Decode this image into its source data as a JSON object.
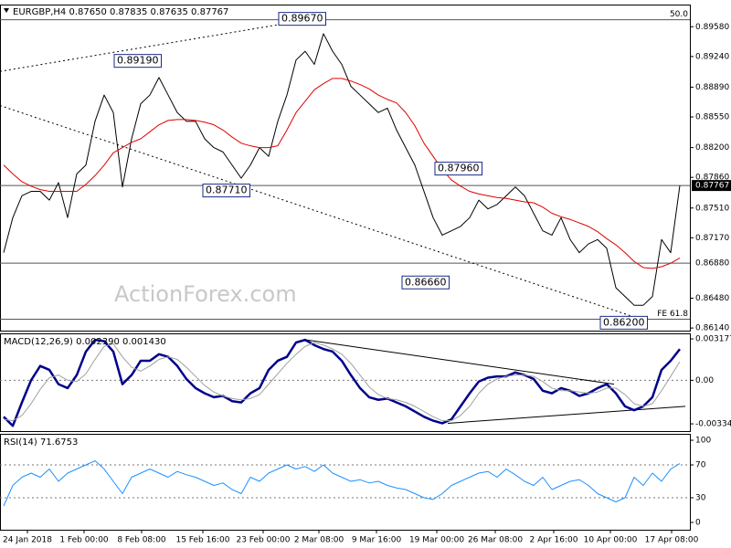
{
  "chart_data": [
    {
      "type": "line",
      "title": "EURGBP,H4  0.87650 0.87835 0.87635 0.87767",
      "watermark": "ActionForex.com",
      "xlim": [
        -0.4,
        75.1
      ],
      "ylim": [
        0.8611,
        0.8976
      ],
      "yticks": [
        {
          "value": 0.8958,
          "label": "0.89580"
        },
        {
          "value": 0.8924,
          "label": "0.89240"
        },
        {
          "value": 0.8889,
          "label": "0.88890"
        },
        {
          "value": 0.8855,
          "label": "0.88550"
        },
        {
          "value": 0.882,
          "label": "0.88200"
        },
        {
          "value": 0.8786,
          "label": "0.87860"
        },
        {
          "value": 0.8751,
          "label": "0.87510"
        },
        {
          "value": 0.8717,
          "label": "0.87170"
        },
        {
          "value": 0.8648,
          "label": "0.86480"
        },
        {
          "value": 0.8614,
          "label": "0.86140"
        }
      ],
      "series": [
        {
          "color": "#000000",
          "line_width": 1,
          "values": [
            0.87,
            0.874,
            0.8765,
            0.877,
            0.877,
            0.876,
            0.878,
            0.874,
            0.879,
            0.88,
            0.885,
            0.888,
            0.886,
            0.8775,
            0.883,
            0.887,
            0.888,
            0.89,
            0.888,
            0.886,
            0.885,
            0.885,
            0.883,
            0.882,
            0.8815,
            0.88,
            0.8785,
            0.88,
            0.882,
            0.881,
            0.885,
            0.888,
            0.892,
            0.893,
            0.8915,
            0.895,
            0.893,
            0.8915,
            0.889,
            0.888,
            0.887,
            0.886,
            0.8865,
            0.884,
            0.882,
            0.88,
            0.877,
            0.874,
            0.872,
            0.8725,
            0.873,
            0.874,
            0.876,
            0.875,
            0.8755,
            0.8765,
            0.8775,
            0.8765,
            0.8745,
            0.8725,
            0.872,
            0.874,
            0.8715,
            0.87,
            0.871,
            0.8715,
            0.8705,
            0.866,
            0.865,
            0.864,
            0.864,
            0.865,
            0.8715,
            0.87,
            0.87767
          ]
        },
        {
          "color": "#e00000",
          "line_width": 1,
          "values": [
            0.88,
            0.879,
            0.8781,
            0.8776,
            0.8772,
            0.877,
            0.877,
            0.877,
            0.877,
            0.8778,
            0.8788,
            0.88,
            0.8814,
            0.882,
            0.8826,
            0.883,
            0.8838,
            0.8846,
            0.8851,
            0.8852,
            0.8852,
            0.8851,
            0.8849,
            0.8846,
            0.884,
            0.8832,
            0.8825,
            0.8822,
            0.882,
            0.882,
            0.8822,
            0.884,
            0.886,
            0.8873,
            0.8886,
            0.8893,
            0.8899,
            0.8899,
            0.8896,
            0.8892,
            0.8887,
            0.888,
            0.8875,
            0.8871,
            0.886,
            0.8845,
            0.8825,
            0.881,
            0.8795,
            0.8783,
            0.8776,
            0.877,
            0.8767,
            0.8765,
            0.8763,
            0.8762,
            0.876,
            0.8758,
            0.8757,
            0.8752,
            0.8745,
            0.8741,
            0.8738,
            0.8734,
            0.873,
            0.8724,
            0.8716,
            0.8709,
            0.87,
            0.869,
            0.8683,
            0.8682,
            0.8684,
            0.8688,
            0.8694
          ]
        }
      ],
      "levels": [
        {
          "value": 0.8966,
          "label": "50.0"
        },
        {
          "value": 0.8624,
          "label": "FE 61.8"
        },
        {
          "value": 0.8688
        },
        {
          "value": 0.87767
        }
      ],
      "trendlines": [
        {
          "x": [
            -0.4,
            35.6
          ],
          "values": [
            0.8907,
            0.897
          ]
        },
        {
          "x": [
            -0.4,
            68.6
          ],
          "values": [
            0.8868,
            0.8628
          ]
        }
      ],
      "annotations": [
        {
          "text": "0.89670",
          "x": 30.1,
          "value": 0.8967
        },
        {
          "text": "0.89190",
          "x": 12.1,
          "value": 0.8919
        },
        {
          "text": "0.87710",
          "x": 21.8,
          "value": 0.8771
        },
        {
          "text": "0.87960",
          "x": 47.2,
          "value": 0.8796
        },
        {
          "text": "0.86660",
          "x": 43.6,
          "value": 0.8666
        },
        {
          "text": "0.86200",
          "x": 65.3,
          "value": 0.862
        }
      ],
      "price_tags": [
        {
          "value": 0.87767,
          "dark": true
        },
        {
          "value": 0.8688,
          "label": "0.86880",
          "dark": false
        }
      ]
    },
    {
      "type": "line",
      "title": "MACD(12,26,9) 0.002390 0.001430",
      "xlim": [
        -0.4,
        75.1
      ],
      "ylim": [
        -0.0039,
        0.00353
      ],
      "yticks": [
        0.003177,
        {
          "value": 0,
          "label": "0.00"
        },
        -0.003344
      ],
      "levels": [
        {
          "value": 0
        }
      ],
      "series": [
        {
          "color": "#00008b",
          "line_width": 2.5,
          "values": [
            -0.0028,
            -0.0035,
            -0.0017,
            0,
            0.0011,
            0.0008,
            -0.0003,
            -0.0006,
            0.0004,
            0.0022,
            0.0031,
            0.003,
            0.0022,
            -0.0003,
            0.0004,
            0.0015,
            0.0015,
            0.002,
            0.0018,
            0.0011,
            0.0001,
            -0.0006,
            -0.001,
            -0.0013,
            -0.0012,
            -0.0016,
            -0.0017,
            -0.001,
            -0.0006,
            0.0008,
            0.0015,
            0.0018,
            0.0029,
            0.0031,
            0.0027,
            0.0024,
            0.0022,
            0.0015,
            0.0004,
            -0.0006,
            -0.0013,
            -0.0015,
            -0.0014,
            -0.0017,
            -0.002,
            -0.0024,
            -0.0028,
            -0.0031,
            -0.0033,
            -0.003,
            -0.002,
            -0.001,
            -0.0001,
            0.0002,
            0.0003,
            0.0003,
            0.0006,
            0.0004,
            0.0001,
            -0.0008,
            -0.001,
            -0.0006,
            -0.0008,
            -0.0012,
            -0.001,
            -0.0006,
            -0.0003,
            -0.001,
            -0.002,
            -0.0023,
            -0.002,
            -0.0013,
            0.0008,
            0.0015,
            0.00239
          ]
        },
        {
          "color": "#a0a0a0",
          "line_width": 1,
          "values": [
            -0.003,
            -0.0031,
            -0.0027,
            -0.0018,
            -0.0007,
            0.0002,
            0.0004,
            0,
            -0.0001,
            0.0005,
            0.0016,
            0.0026,
            0.0028,
            0.0018,
            0.001,
            0.0007,
            0.0011,
            0.0016,
            0.0018,
            0.0016,
            0.001,
            0.0003,
            -0.0004,
            -0.0009,
            -0.0012,
            -0.0014,
            -0.0015,
            -0.0014,
            -0.0011,
            -0.0003,
            0.0005,
            0.0013,
            0.002,
            0.0026,
            0.0029,
            0.0027,
            0.0024,
            0.002,
            0.0013,
            0.0004,
            -0.0005,
            -0.0011,
            -0.0014,
            -0.0015,
            -0.0017,
            -0.002,
            -0.0024,
            -0.0028,
            -0.0031,
            -0.0031,
            -0.0027,
            -0.002,
            -0.001,
            -0.0003,
            0.0001,
            0.0003,
            0.0004,
            0.0004,
            0.0003,
            -0.0001,
            -0.0006,
            -0.0008,
            -0.0008,
            -0.0009,
            -0.001,
            -0.0009,
            -0.0006,
            -0.0006,
            -0.0011,
            -0.0018,
            -0.002,
            -0.0018,
            -0.0008,
            0.0003,
            0.00143
          ]
        }
      ],
      "trendlines": [
        {
          "x": [
            33.1,
            66.8
          ],
          "values": [
            0.0031,
            -0.0003
          ]
        },
        {
          "x": [
            48.6,
            74.6
          ],
          "values": [
            -0.0033,
            -0.002
          ]
        }
      ]
    },
    {
      "type": "line",
      "title": "RSI(14) 71.6753",
      "xlim": [
        -0.4,
        75.1
      ],
      "ylim": [
        -8.9,
        106.7
      ],
      "yticks": [
        100,
        70,
        30,
        0
      ],
      "levels": [
        {
          "value": 70
        },
        {
          "value": 30
        }
      ],
      "series": [
        {
          "color": "#1e90ff",
          "line_width": 1,
          "values": [
            20,
            45,
            55,
            60,
            55,
            65,
            50,
            60,
            65,
            70,
            75,
            65,
            50,
            35,
            55,
            60,
            65,
            60,
            55,
            62,
            58,
            55,
            50,
            45,
            48,
            40,
            35,
            55,
            50,
            60,
            65,
            70,
            65,
            68,
            62,
            70,
            60,
            55,
            50,
            52,
            48,
            50,
            45,
            42,
            40,
            35,
            30,
            28,
            35,
            45,
            50,
            55,
            60,
            62,
            55,
            65,
            58,
            50,
            45,
            55,
            40,
            45,
            50,
            52,
            45,
            35,
            30,
            25,
            30,
            55,
            45,
            60,
            50,
            65,
            71.6753
          ]
        }
      ],
      "xticks": [
        {
          "value": 2.6,
          "label": "24 Jan 2018"
        },
        {
          "value": 8.8,
          "label": "1 Feb 00:00"
        },
        {
          "value": 15.1,
          "label": "8 Feb 08:00"
        },
        {
          "value": 21.8,
          "label": "15 Feb 16:00"
        },
        {
          "value": 28.4,
          "label": "23 Feb 00:00"
        },
        {
          "value": 34.5,
          "label": "2 Mar 08:00"
        },
        {
          "value": 40.8,
          "label": "9 Mar 16:00"
        },
        {
          "value": 47.4,
          "label": "19 Mar 00:00"
        },
        {
          "value": 53.8,
          "label": "26 Mar 08:00"
        },
        {
          "value": 60.2,
          "label": "2 Apr 16:00"
        },
        {
          "value": 66.4,
          "label": "10 Apr 00:00"
        },
        {
          "value": 73.1,
          "label": "17 Apr 08:00"
        }
      ]
    }
  ]
}
